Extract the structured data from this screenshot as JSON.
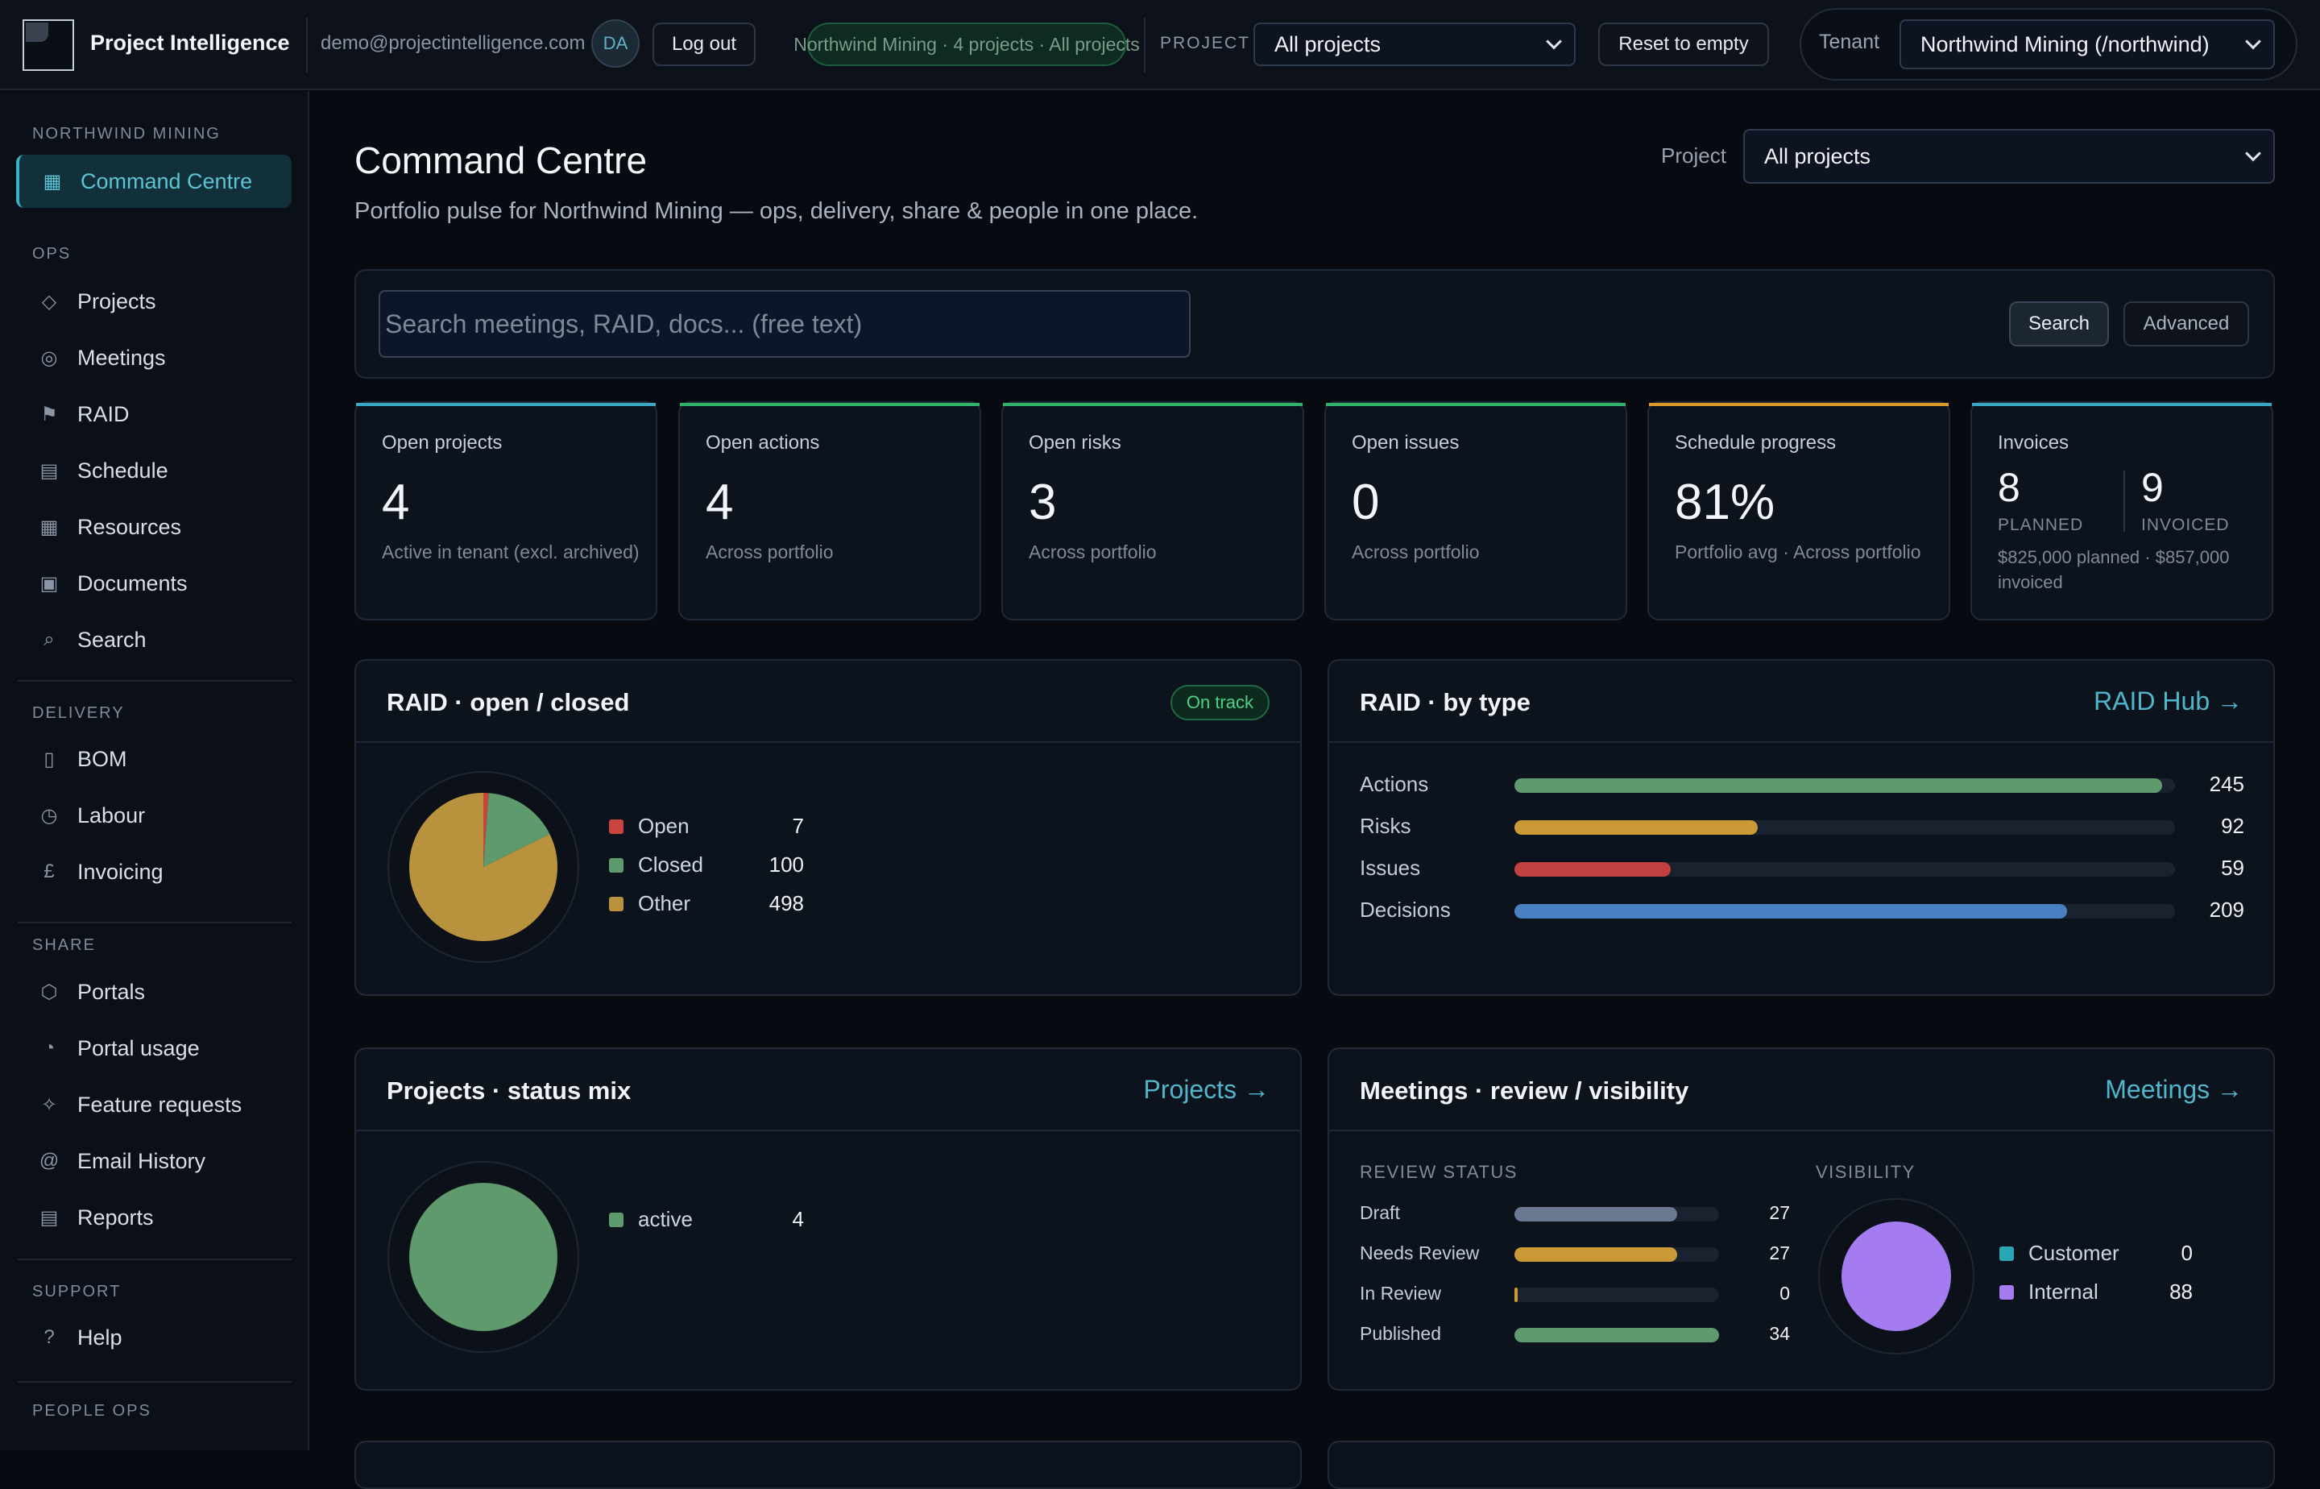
{
  "topbar": {
    "brand": "Project Intelligence",
    "email": "demo@projectintelligence.com",
    "avatar_initials": "DA",
    "logout_label": "Log out",
    "context_pill": "Northwind Mining · 4 projects · All projects",
    "project_label": "PROJECT",
    "project_select": "All projects",
    "reset_label": "Reset to empty",
    "tenant_label": "Tenant",
    "tenant_select": "Northwind Mining (/northwind)"
  },
  "sidebar": {
    "tenant_heading": "NORTHWIND MINING",
    "command_centre": {
      "label": "Command Centre",
      "icon": "grid-icon"
    },
    "ops_heading": "OPS",
    "ops": [
      {
        "label": "Projects",
        "icon": "diamond-icon"
      },
      {
        "label": "Meetings",
        "icon": "target-icon"
      },
      {
        "label": "RAID",
        "icon": "flag-icon"
      },
      {
        "label": "Schedule",
        "icon": "schedule-icon"
      },
      {
        "label": "Resources",
        "icon": "resources-icon"
      },
      {
        "label": "Documents",
        "icon": "document-icon"
      },
      {
        "label": "Search",
        "icon": "search-icon"
      }
    ],
    "delivery_heading": "DELIVERY",
    "delivery": [
      {
        "label": "BOM",
        "icon": "bom-icon"
      },
      {
        "label": "Labour",
        "icon": "clock-icon"
      },
      {
        "label": "Invoicing",
        "icon": "pound-icon"
      }
    ],
    "share_heading": "SHARE",
    "share": [
      {
        "label": "Portals",
        "icon": "hexagon-icon"
      },
      {
        "label": "Portal usage",
        "icon": "pie-icon"
      },
      {
        "label": "Feature requests",
        "icon": "sparkle-icon"
      },
      {
        "label": "Email History",
        "icon": "at-icon"
      },
      {
        "label": "Reports",
        "icon": "report-icon"
      }
    ],
    "support_heading": "SUPPORT",
    "support": [
      {
        "label": "Help",
        "icon": "question-icon"
      }
    ],
    "people_heading": "PEOPLE OPS"
  },
  "main": {
    "title": "Command Centre",
    "subtitle": "Portfolio pulse for Northwind Mining — ops, delivery, share & people in one place.",
    "project_label": "Project",
    "project_select": "All projects",
    "search_placeholder": "Search meetings, RAID, docs... (free text)",
    "search_button": "Search",
    "advanced_button": "Advanced"
  },
  "kpis": [
    {
      "title": "Open projects",
      "value": "4",
      "sub": "Active in tenant (excl. archived)",
      "accent": "#3aa6c2"
    },
    {
      "title": "Open actions",
      "value": "4",
      "sub": "Across portfolio",
      "accent": "#2fb36a"
    },
    {
      "title": "Open risks",
      "value": "3",
      "sub": "Across portfolio",
      "accent": "#2fb36a"
    },
    {
      "title": "Open issues",
      "value": "0",
      "sub": "Across portfolio",
      "accent": "#2fb36a"
    },
    {
      "title": "Schedule progress",
      "value": "81%",
      "sub": "Portfolio avg · Across portfolio",
      "accent": "#d99a2b"
    },
    {
      "title": "Invoices",
      "planned_value": "8",
      "planned_label": "PLANNED",
      "invoiced_value": "9",
      "invoiced_label": "INVOICED",
      "sub": "$825,000 planned · $857,000 invoiced",
      "accent": "#3aa6c2"
    }
  ],
  "raid_open_closed": {
    "title": "RAID · open / closed",
    "badge": "On track",
    "chart_data": {
      "type": "pie",
      "slices": [
        {
          "name": "Open",
          "value": 7,
          "color": "#c9443f"
        },
        {
          "name": "Closed",
          "value": 100,
          "color": "#5e9a6c"
        },
        {
          "name": "Other",
          "value": 498,
          "color": "#b8923c"
        }
      ]
    }
  },
  "raid_by_type": {
    "title": "RAID · by type",
    "link": "RAID Hub →",
    "chart_data": {
      "type": "bar",
      "max": 250,
      "bars": [
        {
          "name": "Actions",
          "value": 245,
          "color": "#5e9a6c"
        },
        {
          "name": "Risks",
          "value": 92,
          "color": "#c99a35"
        },
        {
          "name": "Issues",
          "value": 59,
          "color": "#c24040"
        },
        {
          "name": "Decisions",
          "value": 209,
          "color": "#4a7fc1"
        }
      ]
    }
  },
  "projects_status": {
    "title": "Projects · status mix",
    "link": "Projects →",
    "chart_data": {
      "type": "pie",
      "slices": [
        {
          "name": "active",
          "value": 4,
          "color": "#5e9a6c"
        }
      ]
    }
  },
  "meetings": {
    "title": "Meetings · review / visibility",
    "link": "Meetings →",
    "review_heading": "REVIEW STATUS",
    "visibility_heading": "VISIBILITY",
    "chart_data": [
      {
        "type": "bar",
        "max": 34,
        "bars": [
          {
            "name": "Draft",
            "value": 27,
            "color": "#6b7891"
          },
          {
            "name": "Needs Review",
            "value": 27,
            "color": "#c99a35"
          },
          {
            "name": "In Review",
            "value": 0,
            "color": "#c99a35"
          },
          {
            "name": "Published",
            "value": 34,
            "color": "#5e9a6c"
          }
        ]
      },
      {
        "type": "pie",
        "slices": [
          {
            "name": "Customer",
            "value": 0,
            "color": "#2aa7b5"
          },
          {
            "name": "Internal",
            "value": 88,
            "color": "#a47cf0"
          }
        ]
      }
    ]
  }
}
